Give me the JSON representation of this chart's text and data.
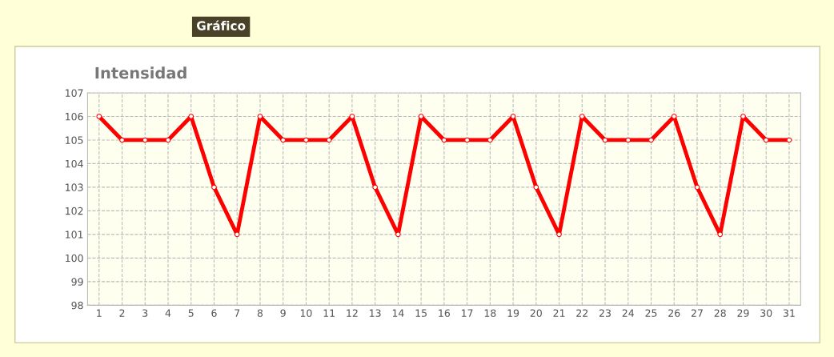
{
  "chart_data": {
    "type": "line",
    "title": "Intensidad",
    "annotations": [
      "Gráfico"
    ],
    "categories": [
      "1",
      "2",
      "3",
      "4",
      "5",
      "6",
      "7",
      "8",
      "9",
      "10",
      "11",
      "12",
      "13",
      "14",
      "15",
      "16",
      "17",
      "18",
      "19",
      "20",
      "21",
      "22",
      "23",
      "24",
      "25",
      "26",
      "27",
      "28",
      "29",
      "30",
      "31"
    ],
    "series": [
      {
        "color": "#ff0000",
        "values": [
          106,
          105,
          105,
          105,
          106,
          103,
          101,
          106,
          105,
          105,
          105,
          106,
          103,
          101,
          106,
          105,
          105,
          105,
          106,
          103,
          101,
          106,
          105,
          105,
          105,
          106,
          103,
          101,
          106,
          105,
          105
        ]
      }
    ],
    "ylim": [
      98,
      107
    ],
    "yticks": [
      98,
      99,
      100,
      101,
      102,
      103,
      104,
      105,
      106,
      107
    ],
    "grid": true,
    "marker": "circle",
    "line_style": "solid",
    "legend": false
  }
}
